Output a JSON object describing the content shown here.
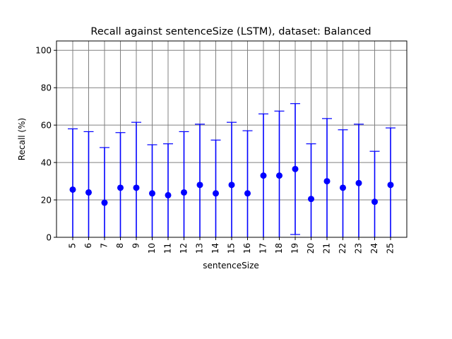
{
  "chart_data": {
    "type": "scatter",
    "title": "Recall against sentenceSize (LSTM), dataset: Balanced",
    "xlabel": "sentenceSize",
    "ylabel": "Recall (%)",
    "ylim": [
      0,
      105
    ],
    "yticks": [
      0,
      20,
      40,
      60,
      80,
      100
    ],
    "grid": true,
    "x": [
      5,
      6,
      7,
      8,
      9,
      10,
      11,
      12,
      13,
      14,
      15,
      16,
      17,
      18,
      19,
      20,
      21,
      22,
      23,
      24,
      25
    ],
    "x_tick_labels": [
      "5",
      "6",
      "7",
      "8",
      "9",
      "10",
      "11",
      "12",
      "13",
      "14",
      "15",
      "16",
      "17",
      "18",
      "19",
      "20",
      "21",
      "22",
      "23",
      "24",
      "25"
    ],
    "y": [
      25.5,
      24.0,
      18.5,
      26.5,
      26.5,
      23.5,
      22.5,
      24.0,
      28.0,
      23.5,
      28.0,
      23.5,
      33.0,
      33.0,
      36.5,
      20.5,
      30.0,
      26.5,
      29.0,
      19.0,
      28.0
    ],
    "error_low": [
      0,
      0,
      0,
      0,
      0,
      0,
      0,
      0,
      0,
      0,
      0,
      0,
      0,
      0,
      1.5,
      0,
      0,
      0,
      0,
      0,
      0
    ],
    "error_high": [
      58.0,
      56.5,
      48.0,
      56.0,
      61.5,
      49.5,
      50.0,
      56.5,
      60.5,
      52.0,
      61.5,
      57.0,
      66.0,
      67.5,
      71.5,
      50.0,
      63.5,
      57.5,
      60.5,
      46.0,
      58.5
    ],
    "colors": {
      "marker": "#0000ff",
      "errorbar": "#0000ff",
      "grid": "#808080",
      "axis": "#000000"
    }
  }
}
